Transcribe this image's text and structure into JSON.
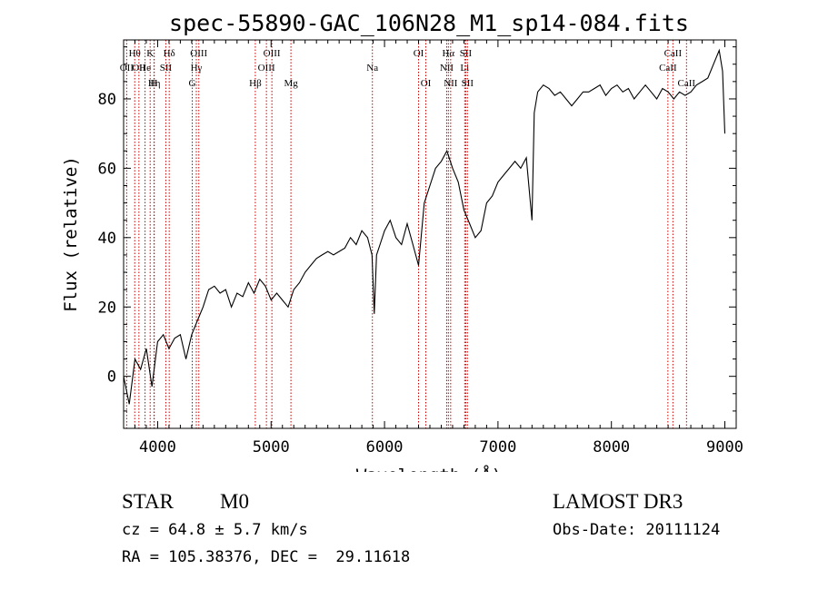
{
  "chart_data": {
    "type": "line",
    "title": "spec-55890-GAC_106N28_M1_sp14-084.fits",
    "xlabel": "Wavelength (Å)",
    "ylabel": "Flux (relative)",
    "xlim": [
      3700,
      9100
    ],
    "ylim": [
      -15,
      97
    ],
    "xticks": [
      4000,
      5000,
      6000,
      7000,
      8000,
      9000
    ],
    "xtick_labels": [
      "4000",
      "5000",
      "6000",
      "7000",
      "8000",
      "9000"
    ],
    "yticks": [
      0,
      20,
      40,
      60,
      80
    ],
    "ytick_labels": [
      "0",
      "20",
      "40",
      "60",
      "80"
    ],
    "series": [
      {
        "name": "spectrum",
        "x": [
          3700,
          3750,
          3800,
          3850,
          3900,
          3950,
          4000,
          4050,
          4100,
          4150,
          4200,
          4250,
          4300,
          4350,
          4400,
          4450,
          4500,
          4550,
          4600,
          4650,
          4700,
          4750,
          4800,
          4850,
          4900,
          4950,
          5000,
          5050,
          5100,
          5150,
          5200,
          5250,
          5300,
          5350,
          5400,
          5450,
          5500,
          5550,
          5600,
          5650,
          5700,
          5750,
          5800,
          5850,
          5890,
          5910,
          5930,
          5960,
          6000,
          6050,
          6100,
          6150,
          6200,
          6250,
          6300,
          6350,
          6400,
          6450,
          6500,
          6550,
          6600,
          6650,
          6700,
          6750,
          6800,
          6850,
          6900,
          6950,
          7000,
          7050,
          7100,
          7150,
          7200,
          7250,
          7300,
          7320,
          7350,
          7400,
          7450,
          7500,
          7550,
          7600,
          7650,
          7700,
          7750,
          7800,
          7850,
          7900,
          7950,
          8000,
          8050,
          8100,
          8150,
          8200,
          8250,
          8300,
          8350,
          8400,
          8450,
          8500,
          8550,
          8600,
          8650,
          8700,
          8750,
          8800,
          8850,
          8900,
          8950,
          8980,
          9000
        ],
        "y": [
          0,
          -8,
          5,
          2,
          8,
          -3,
          10,
          12,
          8,
          11,
          12,
          5,
          12,
          16,
          20,
          25,
          26,
          24,
          25,
          20,
          24,
          23,
          27,
          24,
          28,
          26,
          22,
          24,
          22,
          20,
          25,
          27,
          30,
          32,
          34,
          35,
          36,
          35,
          36,
          37,
          40,
          38,
          42,
          40,
          35,
          18,
          35,
          38,
          42,
          45,
          40,
          38,
          44,
          38,
          32,
          50,
          55,
          60,
          62,
          65,
          60,
          56,
          48,
          44,
          40,
          42,
          50,
          52,
          56,
          58,
          60,
          62,
          60,
          63,
          45,
          76,
          82,
          84,
          83,
          81,
          82,
          80,
          78,
          80,
          82,
          82,
          83,
          84,
          81,
          83,
          84,
          82,
          83,
          80,
          82,
          84,
          82,
          80,
          83,
          82,
          80,
          82,
          81,
          82,
          84,
          85,
          86,
          90,
          94,
          88,
          70
        ]
      }
    ],
    "lines": [
      {
        "wl": 3727,
        "label": "OII",
        "row": 1
      },
      {
        "wl": 3798,
        "label": "Hθ",
        "row": 0
      },
      {
        "wl": 3835,
        "label": "OII",
        "row": 1
      },
      {
        "wl": 3889,
        "label": "He",
        "row": 1
      },
      {
        "wl": 3934,
        "label": "K",
        "row": 0
      },
      {
        "wl": 3970,
        "label": "Hη",
        "row": 2
      },
      {
        "wl": 3968,
        "label": "H",
        "row": 2
      },
      {
        "wl": 4072,
        "label": "SII",
        "row": 1
      },
      {
        "wl": 4102,
        "label": "Hδ",
        "row": 0
      },
      {
        "wl": 4305,
        "label": "G",
        "row": 2
      },
      {
        "wl": 4341,
        "label": "Hγ",
        "row": 1
      },
      {
        "wl": 4363,
        "label": "OIII",
        "row": 0
      },
      {
        "wl": 4861,
        "label": "Hβ",
        "row": 2
      },
      {
        "wl": 4959,
        "label": "OIII",
        "row": 1
      },
      {
        "wl": 5007,
        "label": "OIII",
        "row": 0
      },
      {
        "wl": 5175,
        "label": "Mg",
        "row": 2
      },
      {
        "wl": 5893,
        "label": "Na",
        "row": 1
      },
      {
        "wl": 6300,
        "label": "OI",
        "row": 0
      },
      {
        "wl": 6364,
        "label": "OI",
        "row": 2
      },
      {
        "wl": 6548,
        "label": "NII",
        "row": 1
      },
      {
        "wl": 6563,
        "label": "Hα",
        "row": 0
      },
      {
        "wl": 6583,
        "label": "NII",
        "row": 2
      },
      {
        "wl": 6707,
        "label": "Li",
        "row": 1
      },
      {
        "wl": 6716,
        "label": "SII",
        "row": 0
      },
      {
        "wl": 6731,
        "label": "SII",
        "row": 2
      },
      {
        "wl": 8498,
        "label": "CaII",
        "row": 1
      },
      {
        "wl": 8542,
        "label": "CaII",
        "row": 0
      },
      {
        "wl": 8662,
        "label": "CaII",
        "row": 2
      }
    ]
  },
  "info": {
    "class": "STAR",
    "subclass": "M0",
    "survey": "LAMOST DR3",
    "cz": "cz = 64.8 ± 5.7 km/s",
    "obs_date": "Obs-Date: 20111124",
    "radec": "RA = 105.38376, DEC =  29.11618"
  }
}
